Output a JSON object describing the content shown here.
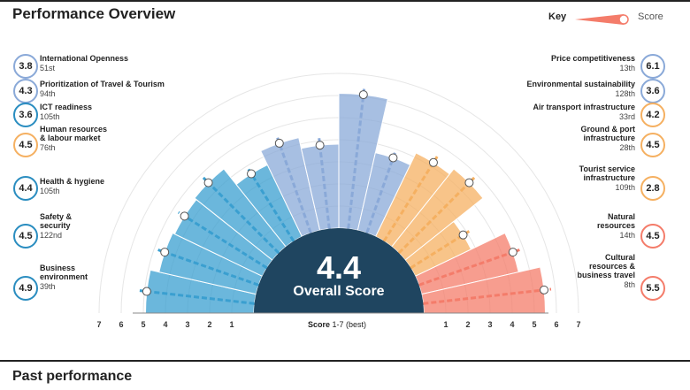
{
  "page": {
    "title": "Performance Overview",
    "past_title": "Past performance"
  },
  "key": {
    "label": "Key",
    "score_label": "Score"
  },
  "chart_data": {
    "type": "radial-bar",
    "overall": {
      "value": "4.4",
      "label": "Overall Score"
    },
    "axis": {
      "title": "Score",
      "range_label": "1-7 (best)",
      "ticks": [
        "7",
        "6",
        "5",
        "4",
        "3",
        "2",
        "1"
      ],
      "ticks_right": [
        "1",
        "2",
        "3",
        "4",
        "5",
        "6",
        "7"
      ]
    },
    "pillars": [
      {
        "name": "Business environment",
        "score": 4.9,
        "score_label": "4.9",
        "rank": "39th",
        "color": "#3a9fd0"
      },
      {
        "name": "Safety & security",
        "score": 4.5,
        "score_label": "4.5",
        "rank": "122nd",
        "color": "#3a9fd0"
      },
      {
        "name": "Health & hygiene",
        "score": 4.4,
        "score_label": "4.4",
        "rank": "105th",
        "color": "#3a9fd0"
      },
      {
        "name": "Human resources & labour market",
        "score": 4.5,
        "score_label": "4.5",
        "rank": "76th",
        "color": "#3a9fd0"
      },
      {
        "name": "ICT readiness",
        "score": 3.6,
        "score_label": "3.6",
        "rank": "105th",
        "color": "#3a9fd0"
      },
      {
        "name": "Prioritization of Travel & Tourism",
        "score": 4.3,
        "score_label": "4.3",
        "rank": "94th",
        "color": "#8aa9d8"
      },
      {
        "name": "International Openness",
        "score": 3.8,
        "score_label": "3.8",
        "rank": "51st",
        "color": "#8aa9d8"
      },
      {
        "name": "Price competitiveness",
        "score": 6.1,
        "score_label": "6.1",
        "rank": "13th",
        "color": "#8aa9d8"
      },
      {
        "name": "Environmental sustainability",
        "score": 3.6,
        "score_label": "3.6",
        "rank": "128th",
        "color": "#8aa9d8"
      },
      {
        "name": "Air transport infrastructure",
        "score": 4.2,
        "score_label": "4.2",
        "rank": "33rd",
        "color": "#f5b061"
      },
      {
        "name": "Ground & port infrastructure",
        "score": 4.5,
        "score_label": "4.5",
        "rank": "28th",
        "color": "#f5b061"
      },
      {
        "name": "Tourist service infrastructure",
        "score": 2.8,
        "score_label": "2.8",
        "rank": "109th",
        "color": "#f5b061"
      },
      {
        "name": "Natural resources",
        "score": 4.5,
        "score_label": "4.5",
        "rank": "14th",
        "color": "#f47c6a"
      },
      {
        "name": "Cultural resources & business travel",
        "score": 5.5,
        "score_label": "5.5",
        "rank": "8th",
        "color": "#f47c6a"
      }
    ]
  },
  "labels": {
    "l0": {
      "name": "International Openness",
      "rank": "51st",
      "score": "3.8"
    },
    "l1": {
      "name": "Prioritization of Travel & Tourism",
      "rank": "94th",
      "score": "4.3"
    },
    "l2": {
      "name": "ICT readiness",
      "rank": "105th",
      "score": "3.6"
    },
    "l3a": "Human resources",
    "l3b": "& labour market",
    "l3rank": "76th",
    "l3score": "4.5",
    "l4": {
      "name": "Health & hygiene",
      "rank": "105th",
      "score": "4.4"
    },
    "l5a": "Safety &",
    "l5b": "security",
    "l5rank": "122nd",
    "l5score": "4.5",
    "l6a": "Business",
    "l6b": "environment",
    "l6rank": "39th",
    "l6score": "4.9",
    "r0": {
      "name": "Price competitiveness",
      "rank": "13th",
      "score": "6.1"
    },
    "r1": {
      "name": "Environmental sustainability",
      "rank": "128th",
      "score": "3.6"
    },
    "r2": {
      "name": "Air transport infrastructure",
      "rank": "33rd",
      "score": "4.2"
    },
    "r3a": "Ground & port",
    "r3b": "infrastructure",
    "r3rank": "28th",
    "r3score": "4.5",
    "r4a": "Tourist service",
    "r4b": "infrastructure",
    "r4rank": "109th",
    "r4score": "2.8",
    "r5a": "Natural",
    "r5b": "resources",
    "r5rank": "14th",
    "r5score": "4.5",
    "r6a": "Cultural",
    "r6b": "resources &",
    "r6c": "business travel",
    "r6rank": "8th",
    "r6score": "5.5"
  },
  "colors": {
    "blue": "#3a9fd0",
    "lavender": "#8aa9d8",
    "orange": "#f5b061",
    "coral": "#f47c6a",
    "navy": "#1f4560"
  }
}
